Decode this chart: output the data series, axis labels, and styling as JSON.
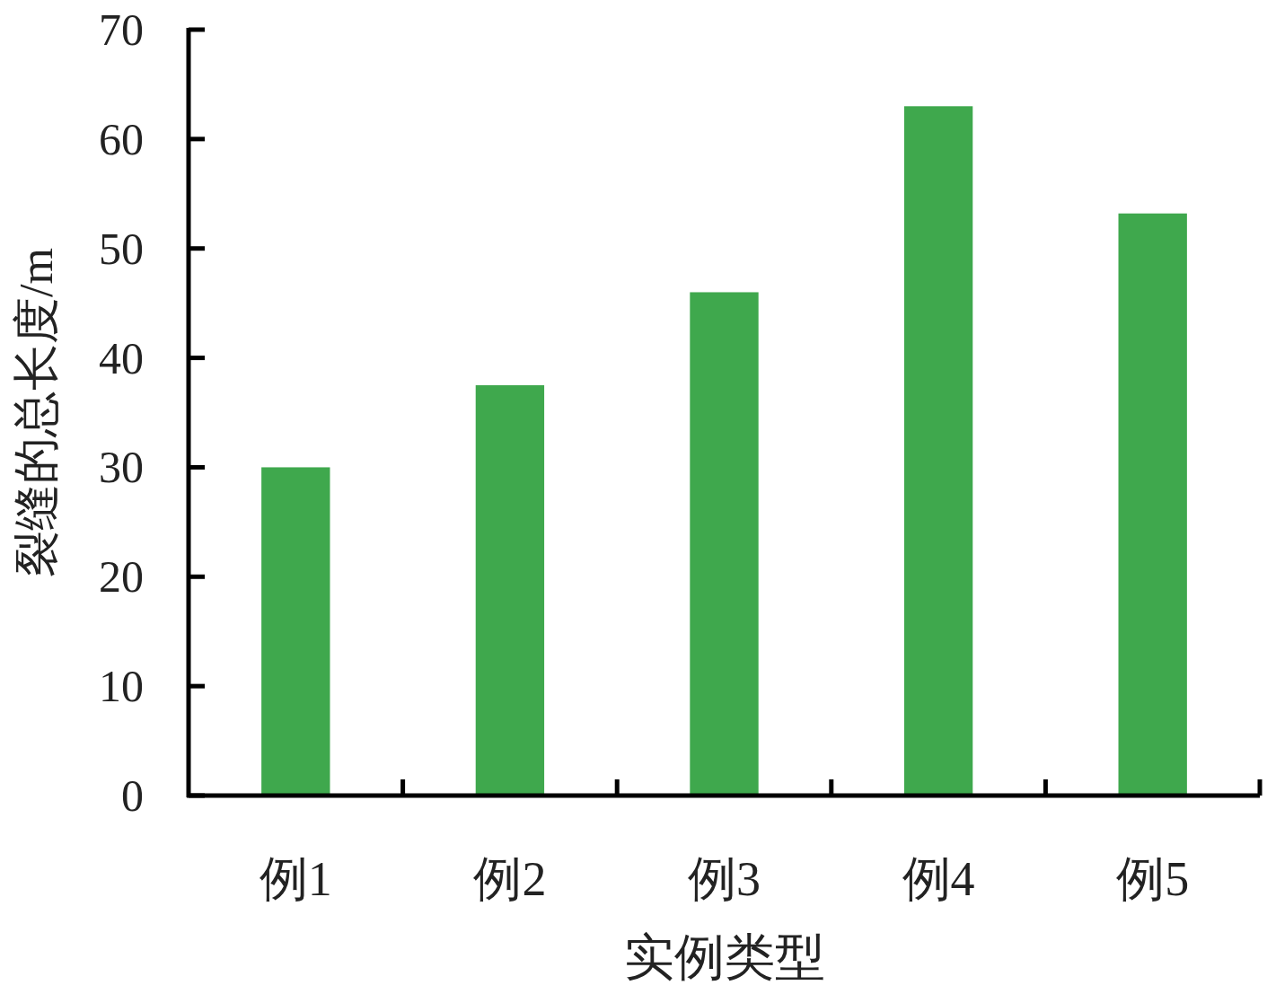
{
  "chart_data": {
    "type": "bar",
    "xlabel": "实例类型",
    "ylabel": "裂缝的总长度/m",
    "categories": [
      "例1",
      "例2",
      "例3",
      "例4",
      "例5"
    ],
    "values": [
      30,
      37.5,
      46,
      63,
      53.2
    ],
    "color": "#3fa84d",
    "ylim": [
      0,
      70
    ],
    "yticks": [
      0,
      10,
      20,
      30,
      40,
      50,
      60,
      70
    ]
  }
}
